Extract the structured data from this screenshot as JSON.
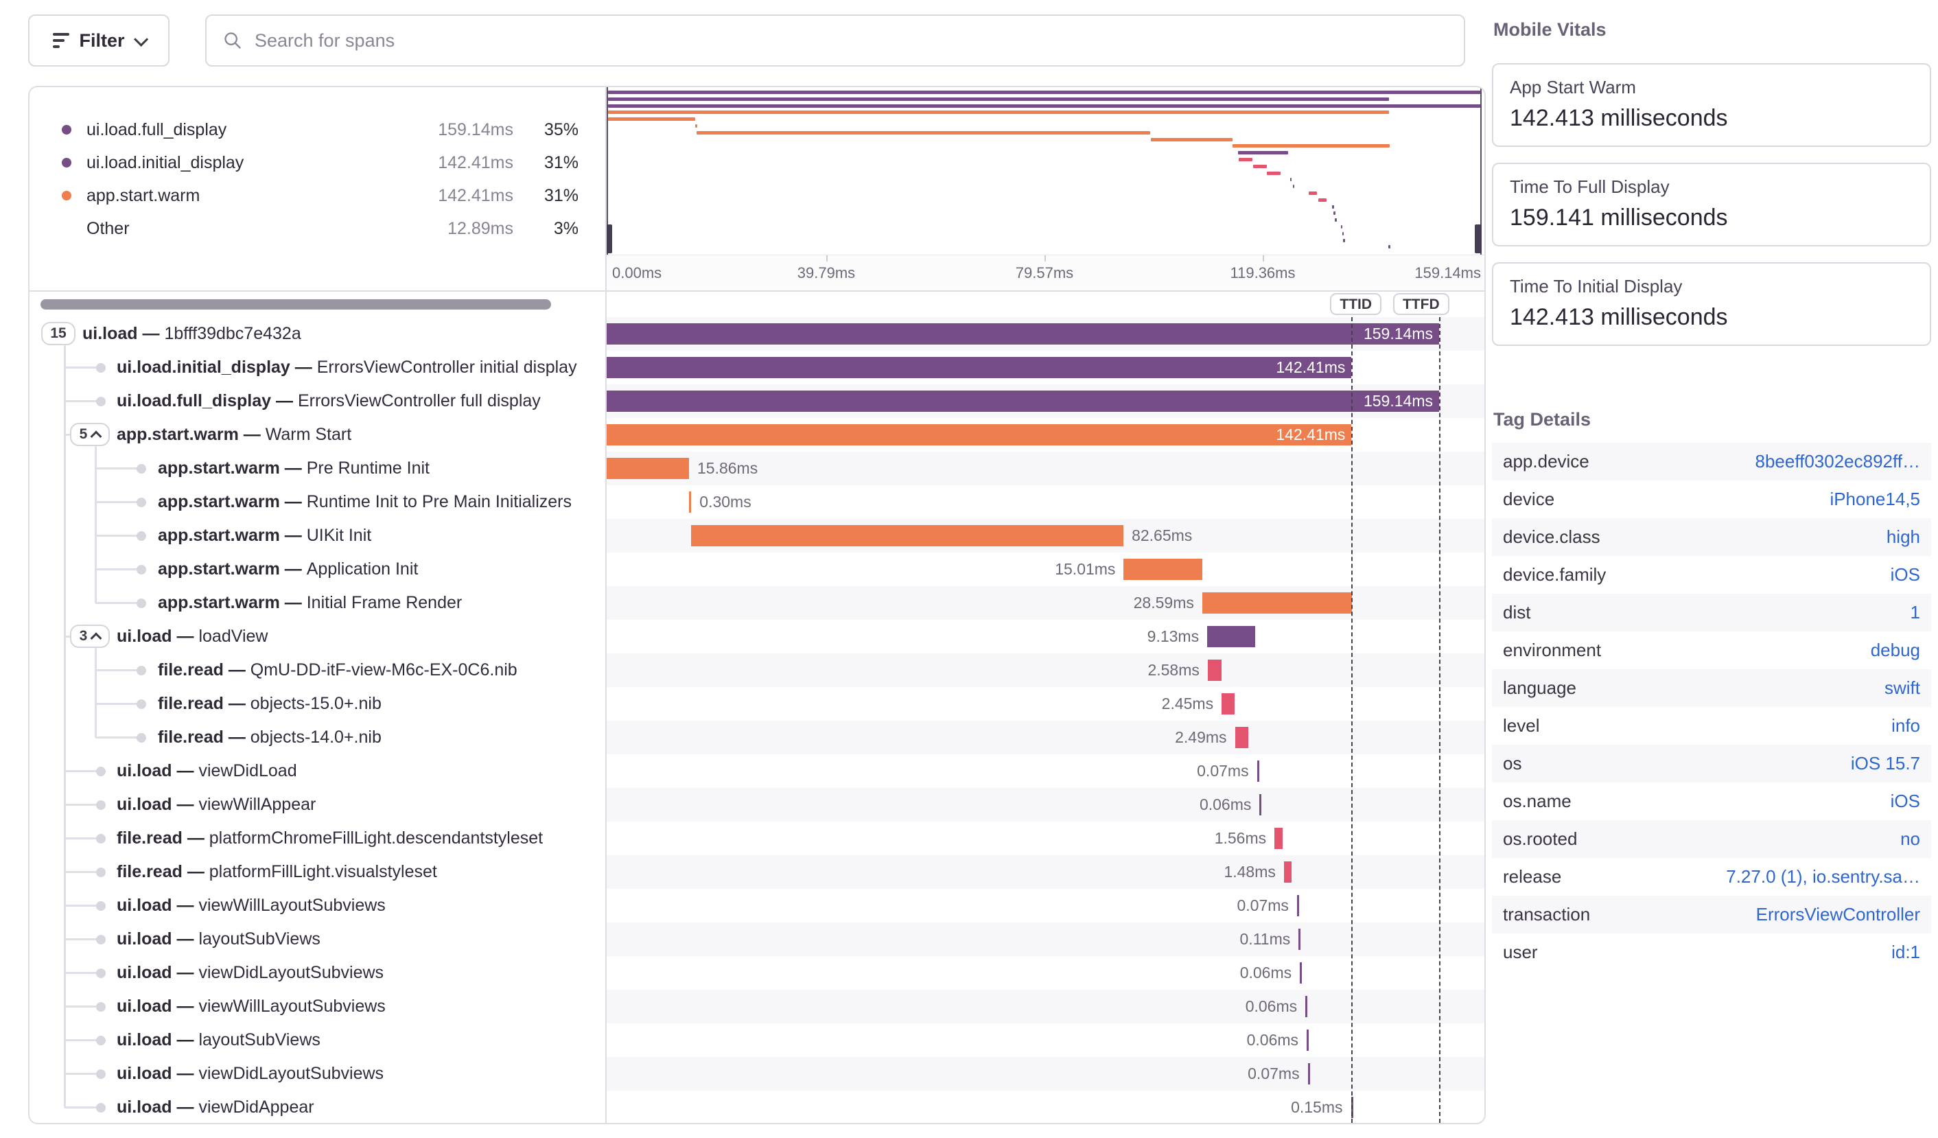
{
  "toolbar": {
    "filter_label": "Filter",
    "search_placeholder": "Search for spans"
  },
  "colors": {
    "purple": "#764d86",
    "orange": "#ef7e4e",
    "red": "#e4546e"
  },
  "legend": {
    "items": [
      {
        "name": "ui.load.full_display",
        "duration": "159.14ms",
        "pct": "35%",
        "color": "purple"
      },
      {
        "name": "ui.load.initial_display",
        "duration": "142.41ms",
        "pct": "31%",
        "color": "purple"
      },
      {
        "name": "app.start.warm",
        "duration": "142.41ms",
        "pct": "31%",
        "color": "orange"
      },
      {
        "name": "Other",
        "duration": "12.89ms",
        "pct": "3%",
        "color": null
      }
    ]
  },
  "minimap": {
    "total_ms": 159.141,
    "axis": [
      {
        "label": "0.00ms",
        "ms": 0
      },
      {
        "label": "39.79ms",
        "ms": 39.785
      },
      {
        "label": "79.57ms",
        "ms": 79.57
      },
      {
        "label": "119.36ms",
        "ms": 119.355
      },
      {
        "label": "159.14ms",
        "ms": 159.141
      }
    ]
  },
  "markers": {
    "ttid_label": "TTID",
    "ttid_ms": 142.413,
    "ttfd_label": "TTFD",
    "ttfd_ms": 159.141
  },
  "spans": [
    {
      "op": "ui.load",
      "desc": "1bfff39dbc7e432a",
      "dur": "159.14ms",
      "start": 0,
      "ms": 159.141,
      "color": "purple",
      "lab": "in",
      "level": 0,
      "pill": "15",
      "chev": false
    },
    {
      "op": "ui.load.initial_display",
      "desc": "ErrorsViewController initial display",
      "dur": "142.41ms",
      "start": 0,
      "ms": 142.413,
      "color": "purple",
      "lab": "in",
      "level": 1
    },
    {
      "op": "ui.load.full_display",
      "desc": "ErrorsViewController full display",
      "dur": "159.14ms",
      "start": 0,
      "ms": 159.141,
      "color": "purple",
      "lab": "in",
      "level": 1
    },
    {
      "op": "app.start.warm",
      "desc": "Warm Start",
      "dur": "142.41ms",
      "start": 0,
      "ms": 142.413,
      "color": "orange",
      "lab": "in",
      "level": 1,
      "pill": "5",
      "chev": true
    },
    {
      "op": "app.start.warm",
      "desc": "Pre Runtime Init",
      "dur": "15.86ms",
      "start": 0,
      "ms": 15.86,
      "color": "orange",
      "lab": "right",
      "level": 2
    },
    {
      "op": "app.start.warm",
      "desc": "Runtime Init to Pre Main Initializers",
      "dur": "0.30ms",
      "start": 15.9,
      "ms": 0.3,
      "color": "orange",
      "lab": "right",
      "level": 2
    },
    {
      "op": "app.start.warm",
      "desc": "UIKit Init",
      "dur": "82.65ms",
      "start": 16.2,
      "ms": 82.65,
      "color": "orange",
      "lab": "right",
      "level": 2
    },
    {
      "op": "app.start.warm",
      "desc": "Application Init",
      "dur": "15.01ms",
      "start": 98.9,
      "ms": 15.01,
      "color": "orange",
      "lab": "left",
      "level": 2
    },
    {
      "op": "app.start.warm",
      "desc": "Initial Frame Render",
      "dur": "28.59ms",
      "start": 113.9,
      "ms": 28.59,
      "color": "orange",
      "lab": "left",
      "level": 2
    },
    {
      "op": "ui.load",
      "desc": "loadView",
      "dur": "9.13ms",
      "start": 114.85,
      "ms": 9.13,
      "color": "purple",
      "lab": "left",
      "level": 1,
      "pill": "3",
      "chev": true
    },
    {
      "op": "file.read",
      "desc": "QmU-DD-itF-view-M6c-EX-0C6.nib",
      "dur": "2.58ms",
      "start": 114.95,
      "ms": 2.58,
      "color": "red",
      "lab": "left",
      "level": 2
    },
    {
      "op": "file.read",
      "desc": "objects-15.0+.nib",
      "dur": "2.45ms",
      "start": 117.6,
      "ms": 2.45,
      "color": "red",
      "lab": "left",
      "level": 2
    },
    {
      "op": "file.read",
      "desc": "objects-14.0+.nib",
      "dur": "2.49ms",
      "start": 120.15,
      "ms": 2.49,
      "color": "red",
      "lab": "left",
      "level": 2
    },
    {
      "op": "ui.load",
      "desc": "viewDidLoad",
      "dur": "0.07ms",
      "start": 124.35,
      "ms": 0.07,
      "color": "purple",
      "lab": "left",
      "level": 1
    },
    {
      "op": "ui.load",
      "desc": "viewWillAppear",
      "dur": "0.06ms",
      "start": 124.85,
      "ms": 0.06,
      "color": "purple",
      "lab": "left",
      "level": 1
    },
    {
      "op": "file.read",
      "desc": "platformChromeFillLight.descendantstyleset",
      "dur": "1.56ms",
      "start": 127.7,
      "ms": 1.56,
      "color": "red",
      "lab": "left",
      "level": 1
    },
    {
      "op": "file.read",
      "desc": "platformFillLight.visualstyleset",
      "dur": "1.48ms",
      "start": 129.5,
      "ms": 1.48,
      "color": "red",
      "lab": "left",
      "level": 1
    },
    {
      "op": "ui.load",
      "desc": "viewWillLayoutSubviews",
      "dur": "0.07ms",
      "start": 132.0,
      "ms": 0.07,
      "color": "purple",
      "lab": "left",
      "level": 1
    },
    {
      "op": "ui.load",
      "desc": "layoutSubViews",
      "dur": "0.11ms",
      "start": 132.3,
      "ms": 0.11,
      "color": "purple",
      "lab": "left",
      "level": 1
    },
    {
      "op": "ui.load",
      "desc": "viewDidLayoutSubviews",
      "dur": "0.06ms",
      "start": 132.55,
      "ms": 0.06,
      "color": "purple",
      "lab": "left",
      "level": 1
    },
    {
      "op": "ui.load",
      "desc": "viewWillLayoutSubviews",
      "dur": "0.06ms",
      "start": 133.6,
      "ms": 0.06,
      "color": "purple",
      "lab": "left",
      "level": 1
    },
    {
      "op": "ui.load",
      "desc": "layoutSubViews",
      "dur": "0.06ms",
      "start": 133.85,
      "ms": 0.06,
      "color": "purple",
      "lab": "left",
      "level": 1
    },
    {
      "op": "ui.load",
      "desc": "viewDidLayoutSubviews",
      "dur": "0.07ms",
      "start": 134.05,
      "ms": 0.07,
      "color": "purple",
      "lab": "left",
      "level": 1
    },
    {
      "op": "ui.load",
      "desc": "viewDidAppear",
      "dur": "0.15ms",
      "start": 142.3,
      "ms": 0.15,
      "color": "purple",
      "lab": "left",
      "level": 1
    }
  ],
  "mobile_vitals": {
    "title": "Mobile Vitals",
    "cards": [
      {
        "label": "App Start Warm",
        "value": "142.413 milliseconds"
      },
      {
        "label": "Time To Full Display",
        "value": "159.141 milliseconds"
      },
      {
        "label": "Time To Initial Display",
        "value": "142.413 milliseconds"
      }
    ]
  },
  "tag_details": {
    "title": "Tag Details",
    "rows": [
      {
        "key": "app.device",
        "value": "8beeff0302ec892ff…"
      },
      {
        "key": "device",
        "value": "iPhone14,5"
      },
      {
        "key": "device.class",
        "value": "high"
      },
      {
        "key": "device.family",
        "value": "iOS"
      },
      {
        "key": "dist",
        "value": "1"
      },
      {
        "key": "environment",
        "value": "debug"
      },
      {
        "key": "language",
        "value": "swift"
      },
      {
        "key": "level",
        "value": "info"
      },
      {
        "key": "os",
        "value": "iOS 15.7"
      },
      {
        "key": "os.name",
        "value": "iOS"
      },
      {
        "key": "os.rooted",
        "value": "no"
      },
      {
        "key": "release",
        "value": "7.27.0 (1), io.sentry.sa…"
      },
      {
        "key": "transaction",
        "value": "ErrorsViewController"
      },
      {
        "key": "user",
        "value": "id:1"
      }
    ]
  }
}
